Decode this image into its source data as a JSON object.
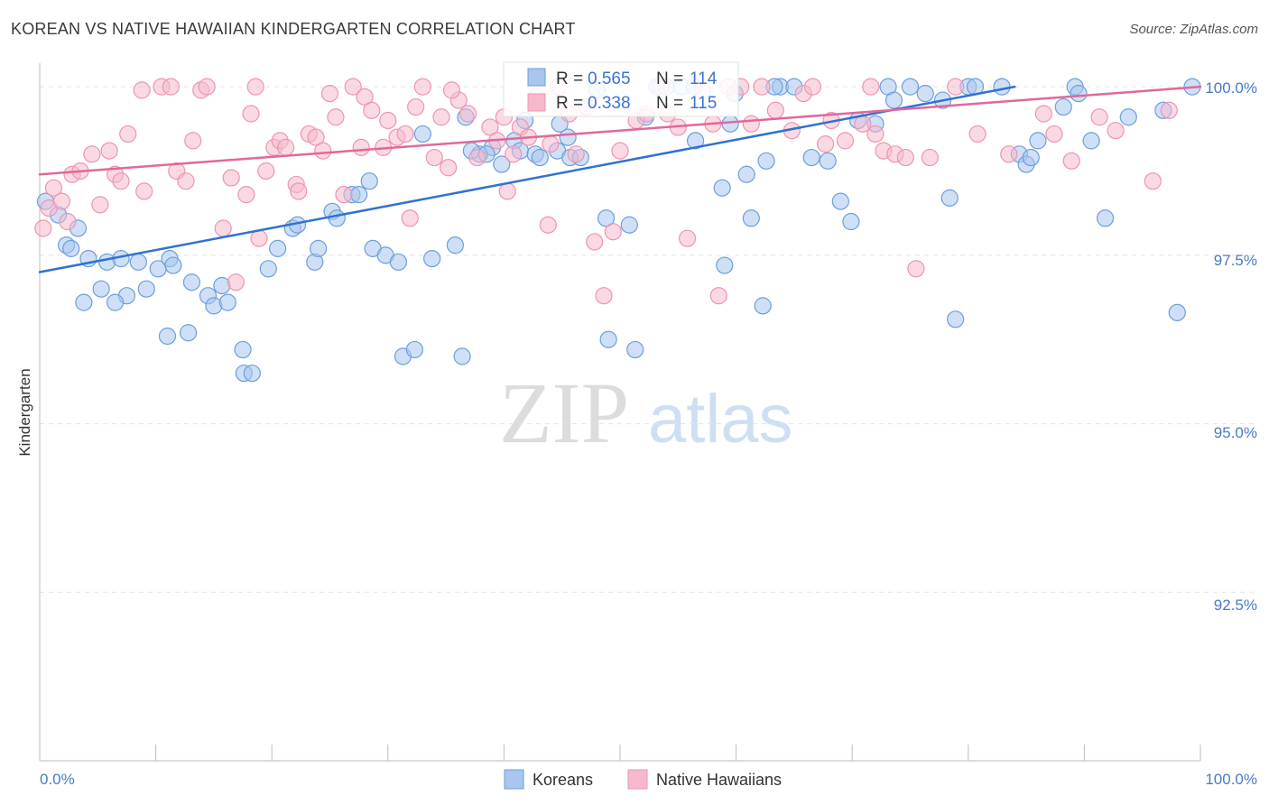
{
  "title": "KOREAN VS NATIVE HAWAIIAN KINDERGARTEN CORRELATION CHART",
  "source": "Source: ZipAtlas.com",
  "watermark": {
    "zip": "ZIP",
    "atlas": "atlas"
  },
  "colors": {
    "korean_fill": "#a8c6ee",
    "korean_stroke": "#6c9ede",
    "korean_line": "#2f72d0",
    "hawaiian_fill": "#f6b9cc",
    "hawaiian_stroke": "#ee94b2",
    "hawaiian_line": "#e0689a",
    "axis_text": "#4a7ac7",
    "grid": "#e3e3e3"
  },
  "stats": {
    "r_label": "R =",
    "n_label": "N =",
    "korean": {
      "r": "0.565",
      "n": "114"
    },
    "hawaiian": {
      "r": "0.338",
      "n": "115"
    }
  },
  "legend": {
    "korean": "Koreans",
    "hawaiian": "Native Hawaiians"
  },
  "chart_data": {
    "type": "scatter",
    "ylabel": "Kindergarten",
    "x_tick_labels": [
      "0.0%",
      "100.0%"
    ],
    "y_tick_labels": [
      "100.0%",
      "97.5%",
      "95.0%",
      "92.5%"
    ],
    "xlim": [
      0,
      100
    ],
    "ylim": [
      90.0,
      100.35
    ],
    "y_ticks": [
      100.0,
      97.5,
      95.0,
      92.5
    ],
    "grid": true,
    "legend_position": "bottom",
    "series": [
      {
        "name": "Koreans",
        "trend": {
          "x": [
            0,
            84
          ],
          "y": [
            97.25,
            100.0
          ]
        },
        "points": [
          [
            0.5,
            98.3
          ],
          [
            1.6,
            98.1
          ],
          [
            2.3,
            97.65
          ],
          [
            3.3,
            97.9
          ],
          [
            2.7,
            97.6
          ],
          [
            4.2,
            97.45
          ],
          [
            5.8,
            97.4
          ],
          [
            7.0,
            97.45
          ],
          [
            8.5,
            97.4
          ],
          [
            10.2,
            97.3
          ],
          [
            11.2,
            97.45
          ],
          [
            11.5,
            97.35
          ],
          [
            5.3,
            97.0
          ],
          [
            7.5,
            96.9
          ],
          [
            9.2,
            97.0
          ],
          [
            6.5,
            96.8
          ],
          [
            11.0,
            96.3
          ],
          [
            12.8,
            96.35
          ],
          [
            14.5,
            96.9
          ],
          [
            15.0,
            96.75
          ],
          [
            13.1,
            97.1
          ],
          [
            15.7,
            97.05
          ],
          [
            16.2,
            96.8
          ],
          [
            17.5,
            96.1
          ],
          [
            17.6,
            95.75
          ],
          [
            18.3,
            95.75
          ],
          [
            3.8,
            96.8
          ],
          [
            19.7,
            97.3
          ],
          [
            20.5,
            97.6
          ],
          [
            21.8,
            97.9
          ],
          [
            22.2,
            97.95
          ],
          [
            23.7,
            97.4
          ],
          [
            24.0,
            97.6
          ],
          [
            25.2,
            98.15
          ],
          [
            25.6,
            98.05
          ],
          [
            26.9,
            98.4
          ],
          [
            27.5,
            98.4
          ],
          [
            28.4,
            98.6
          ],
          [
            28.7,
            97.6
          ],
          [
            29.8,
            97.5
          ],
          [
            30.9,
            97.4
          ],
          [
            31.3,
            96.0
          ],
          [
            32.3,
            96.1
          ],
          [
            33.8,
            97.45
          ],
          [
            35.8,
            97.65
          ],
          [
            36.4,
            96.0
          ],
          [
            37.9,
            99.0
          ],
          [
            39.0,
            99.1
          ],
          [
            40.9,
            99.2
          ],
          [
            41.4,
            99.05
          ],
          [
            42.7,
            99.0
          ],
          [
            43.1,
            98.95
          ],
          [
            44.6,
            99.05
          ],
          [
            45.5,
            99.25
          ],
          [
            45.7,
            98.95
          ],
          [
            46.6,
            98.95
          ],
          [
            37.2,
            99.05
          ],
          [
            38.5,
            99.0
          ],
          [
            39.8,
            98.85
          ],
          [
            48.8,
            98.05
          ],
          [
            49.0,
            96.25
          ],
          [
            50.8,
            97.95
          ],
          [
            51.3,
            96.1
          ],
          [
            52.2,
            99.55
          ],
          [
            53.2,
            100.0
          ],
          [
            54.0,
            100.0
          ],
          [
            55.3,
            100.0
          ],
          [
            56.5,
            99.2
          ],
          [
            58.8,
            98.5
          ],
          [
            59.0,
            97.35
          ],
          [
            59.5,
            99.45
          ],
          [
            59.9,
            99.9
          ],
          [
            60.9,
            98.7
          ],
          [
            61.3,
            98.05
          ],
          [
            62.3,
            96.75
          ],
          [
            63.8,
            100.0
          ],
          [
            65.0,
            100.0
          ],
          [
            69.0,
            98.3
          ],
          [
            69.9,
            98.0
          ],
          [
            73.1,
            100.0
          ],
          [
            73.6,
            99.8
          ],
          [
            75.0,
            100.0
          ],
          [
            76.3,
            99.9
          ],
          [
            77.8,
            99.8
          ],
          [
            78.4,
            98.35
          ],
          [
            78.9,
            96.55
          ],
          [
            80.0,
            100.0
          ],
          [
            80.6,
            100.0
          ],
          [
            82.9,
            100.0
          ],
          [
            84.4,
            99.0
          ],
          [
            85.0,
            98.85
          ],
          [
            85.4,
            98.95
          ],
          [
            86.0,
            99.2
          ],
          [
            88.2,
            99.7
          ],
          [
            89.2,
            100.0
          ],
          [
            89.5,
            99.9
          ],
          [
            90.6,
            99.2
          ],
          [
            91.8,
            98.05
          ],
          [
            93.8,
            99.55
          ],
          [
            96.8,
            99.65
          ],
          [
            98.0,
            96.65
          ],
          [
            99.3,
            100.0
          ],
          [
            36.7,
            99.55
          ],
          [
            56.4,
            100.0
          ],
          [
            63.3,
            100.0
          ],
          [
            41.8,
            99.5
          ],
          [
            48.0,
            99.95
          ],
          [
            33.0,
            99.3
          ],
          [
            44.8,
            99.45
          ],
          [
            62.6,
            98.9
          ],
          [
            66.5,
            98.95
          ],
          [
            67.9,
            98.9
          ],
          [
            70.5,
            99.5
          ],
          [
            72.0,
            99.45
          ]
        ]
      },
      {
        "name": "Native Hawaiians",
        "trend": {
          "x": [
            0,
            100
          ],
          "y": [
            98.7,
            100.0
          ]
        },
        "points": [
          [
            0.3,
            97.9
          ],
          [
            0.8,
            98.2
          ],
          [
            1.2,
            98.5
          ],
          [
            2.4,
            98.0
          ],
          [
            2.8,
            98.7
          ],
          [
            3.5,
            98.75
          ],
          [
            4.5,
            99.0
          ],
          [
            5.2,
            98.25
          ],
          [
            6.0,
            99.05
          ],
          [
            6.5,
            98.7
          ],
          [
            7.0,
            98.6
          ],
          [
            8.8,
            99.95
          ],
          [
            9.0,
            98.45
          ],
          [
            10.5,
            100.0
          ],
          [
            11.8,
            98.75
          ],
          [
            12.6,
            98.6
          ],
          [
            13.2,
            99.2
          ],
          [
            13.9,
            99.95
          ],
          [
            14.4,
            100.0
          ],
          [
            15.8,
            97.9
          ],
          [
            16.5,
            98.65
          ],
          [
            16.9,
            97.1
          ],
          [
            17.8,
            98.4
          ],
          [
            18.2,
            99.6
          ],
          [
            18.9,
            97.75
          ],
          [
            19.5,
            98.75
          ],
          [
            20.2,
            99.1
          ],
          [
            20.7,
            99.2
          ],
          [
            21.2,
            99.1
          ],
          [
            22.1,
            98.55
          ],
          [
            22.3,
            98.45
          ],
          [
            23.2,
            99.3
          ],
          [
            23.8,
            99.25
          ],
          [
            24.4,
            99.05
          ],
          [
            25.5,
            99.55
          ],
          [
            26.2,
            98.4
          ],
          [
            27.0,
            100.0
          ],
          [
            28.0,
            99.85
          ],
          [
            28.6,
            99.65
          ],
          [
            29.6,
            99.1
          ],
          [
            30.0,
            99.5
          ],
          [
            30.8,
            99.25
          ],
          [
            31.9,
            98.05
          ],
          [
            32.4,
            99.7
          ],
          [
            33.0,
            100.0
          ],
          [
            34.6,
            99.55
          ],
          [
            35.2,
            98.8
          ],
          [
            36.1,
            99.8
          ],
          [
            36.9,
            99.6
          ],
          [
            37.7,
            98.95
          ],
          [
            38.8,
            99.4
          ],
          [
            39.4,
            99.2
          ],
          [
            40.3,
            98.45
          ],
          [
            40.8,
            99.0
          ],
          [
            41.4,
            99.4
          ],
          [
            42.1,
            99.25
          ],
          [
            42.8,
            99.85
          ],
          [
            43.8,
            97.95
          ],
          [
            44.7,
            100.0
          ],
          [
            45.6,
            99.6
          ],
          [
            46.2,
            99.0
          ],
          [
            47.1,
            99.7
          ],
          [
            47.8,
            97.7
          ],
          [
            48.6,
            96.9
          ],
          [
            49.4,
            97.85
          ],
          [
            50.0,
            99.05
          ],
          [
            51.4,
            99.5
          ],
          [
            52.3,
            99.6
          ],
          [
            53.5,
            100.0
          ],
          [
            54.1,
            99.6
          ],
          [
            55.0,
            99.4
          ],
          [
            55.8,
            97.75
          ],
          [
            57.1,
            99.95
          ],
          [
            58.5,
            96.9
          ],
          [
            59.3,
            100.0
          ],
          [
            60.4,
            100.0
          ],
          [
            61.3,
            99.45
          ],
          [
            62.2,
            100.0
          ],
          [
            63.4,
            99.65
          ],
          [
            64.8,
            99.35
          ],
          [
            65.8,
            99.9
          ],
          [
            66.6,
            100.0
          ],
          [
            67.7,
            99.15
          ],
          [
            68.2,
            99.5
          ],
          [
            69.4,
            99.2
          ],
          [
            70.9,
            99.45
          ],
          [
            71.6,
            100.0
          ],
          [
            72.0,
            99.3
          ],
          [
            72.7,
            99.05
          ],
          [
            73.7,
            99.0
          ],
          [
            74.6,
            98.95
          ],
          [
            75.5,
            97.3
          ],
          [
            76.7,
            98.95
          ],
          [
            78.9,
            100.0
          ],
          [
            80.8,
            99.3
          ],
          [
            83.5,
            99.0
          ],
          [
            86.5,
            99.6
          ],
          [
            87.4,
            99.3
          ],
          [
            88.9,
            98.9
          ],
          [
            91.3,
            99.55
          ],
          [
            92.7,
            99.35
          ],
          [
            95.9,
            98.6
          ],
          [
            97.3,
            99.65
          ],
          [
            1.9,
            98.3
          ],
          [
            7.6,
            99.3
          ],
          [
            11.3,
            100.0
          ],
          [
            18.6,
            100.0
          ],
          [
            25.0,
            99.9
          ],
          [
            27.7,
            99.1
          ],
          [
            31.5,
            99.3
          ],
          [
            34.0,
            98.95
          ],
          [
            35.5,
            99.95
          ],
          [
            40.0,
            99.55
          ],
          [
            44.0,
            99.15
          ],
          [
            58.0,
            99.45
          ]
        ]
      }
    ]
  }
}
